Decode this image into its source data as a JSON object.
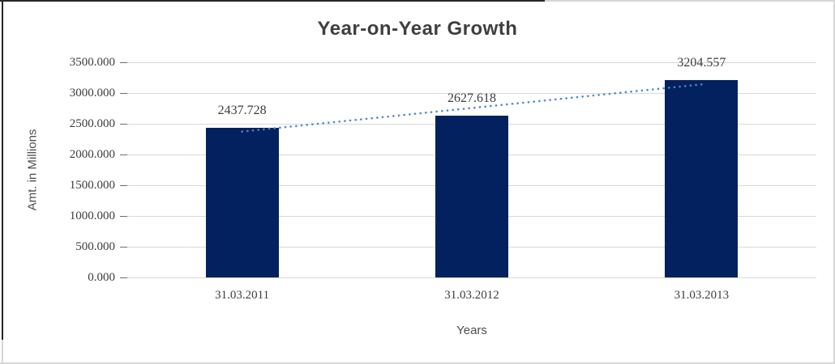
{
  "chart_data": {
    "type": "bar",
    "title": "Year-on-Year Growth",
    "xlabel": "Years",
    "ylabel": "Amt. in Millions",
    "categories": [
      "31.03.2011",
      "31.03.2012",
      "31.03.2013"
    ],
    "values": [
      2437.728,
      2627.618,
      3204.557
    ],
    "data_labels": [
      "2437.728",
      "2627.618",
      "3204.557"
    ],
    "ylim": [
      0,
      3500
    ],
    "ytick_step": 500,
    "ytick_labels": [
      "0.000",
      "500.000",
      "1000.000",
      "1500.000",
      "2000.000",
      "2500.000",
      "3000.000",
      "3500.000"
    ],
    "grid": true,
    "legend_position": "none",
    "bar_color": "#02215E",
    "gridline_color": "#D9D9D9",
    "trendline": {
      "type": "linear",
      "style": "dotted",
      "color": "#4E87C9"
    }
  }
}
